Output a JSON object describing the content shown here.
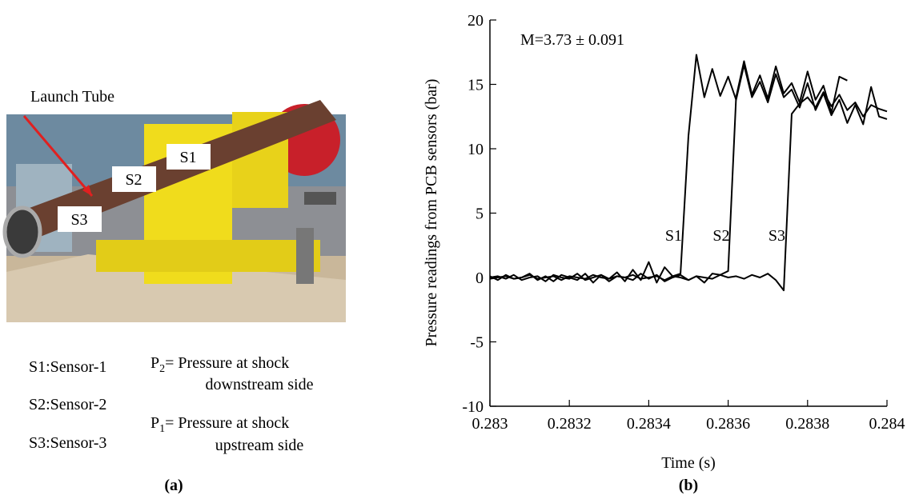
{
  "panel_a": {
    "photo_label": "Launch Tube",
    "sensor_tags": [
      "S1",
      "S2",
      "S3"
    ],
    "sensor_key": [
      "S1:Sensor-1",
      "S2:Sensor-2",
      "S3:Sensor-3"
    ],
    "pressure_key": [
      {
        "symbol": "P",
        "subscript": "2",
        "text": "= Pressure at shock",
        "line2": "downstream side"
      },
      {
        "symbol": "P",
        "subscript": "1",
        "text": "= Pressure at shock",
        "line2": "upstream side"
      }
    ],
    "caption": "(a)"
  },
  "chart_data": {
    "type": "line",
    "caption": "(b)",
    "annotation": "M=3.73 ± 0.091",
    "xlabel": "Time (s)",
    "ylabel": "Pressure readings from PCB sensors (bar)",
    "xlim": [
      0.283,
      0.284
    ],
    "xticks": [
      0.283,
      0.2832,
      0.2834,
      0.2836,
      0.2838,
      0.284
    ],
    "ylim": [
      -10,
      20
    ],
    "yticks": [
      -10,
      -5,
      0,
      5,
      10,
      15,
      20
    ],
    "x": [
      0.283,
      0.28302,
      0.28304,
      0.28306,
      0.28308,
      0.2831,
      0.28312,
      0.28314,
      0.28316,
      0.28318,
      0.2832,
      0.28322,
      0.28324,
      0.28326,
      0.28328,
      0.2833,
      0.28332,
      0.28334,
      0.28336,
      0.28338,
      0.2834,
      0.28342,
      0.28344,
      0.28346,
      0.28348,
      0.2835,
      0.28352,
      0.28354,
      0.28356,
      0.28358,
      0.2836,
      0.28362,
      0.28364,
      0.28366,
      0.28368,
      0.2837,
      0.28372,
      0.28374,
      0.28376,
      0.28378,
      0.2838,
      0.28382,
      0.28384,
      0.28386,
      0.28388,
      0.2839,
      0.28392,
      0.28394,
      0.28396,
      0.28398,
      0.284
    ],
    "series": [
      {
        "name": "S1",
        "color": "#000000",
        "values": [
          0.1,
          -0.2,
          0.2,
          -0.1,
          0,
          0.3,
          -0.2,
          0.1,
          -0.3,
          0.2,
          0,
          -0.2,
          0.3,
          -0.4,
          0.2,
          -0.1,
          0.4,
          -0.3,
          0.6,
          -0.2,
          1.2,
          -0.4,
          0.8,
          0.1,
          0.3,
          11,
          17.3,
          14,
          16.2,
          14.1,
          15.6,
          13.8,
          16.5,
          14,
          15.2,
          13.6,
          15.8,
          14,
          14.6,
          13.2,
          15.1,
          13,
          14.3,
          12.6,
          13.8,
          12,
          13.4,
          11.9,
          14.8,
          12.5,
          12.3
        ]
      },
      {
        "name": "S2",
        "color": "#000000",
        "values": [
          0,
          0.1,
          -0.1,
          0.2,
          -0.2,
          0,
          0.1,
          -0.3,
          0.2,
          0,
          -0.1,
          0.3,
          -0.2,
          0,
          0.2,
          -0.3,
          0.1,
          0,
          -0.2,
          0.3,
          -0.1,
          0.2,
          -0.3,
          0,
          0.2,
          -0.2,
          0.1,
          -0.4,
          0.3,
          0.2,
          0.5,
          14,
          16.8,
          14.2,
          15.7,
          13.9,
          16.4,
          14.3,
          15.1,
          13.6,
          16,
          13.8,
          14.9,
          12.8,
          15.6,
          15.3,
          null,
          null,
          null,
          null,
          null
        ]
      },
      {
        "name": "S3",
        "color": "#000000",
        "values": [
          -0.1,
          0,
          0.1,
          -0.1,
          0,
          0.2,
          -0.1,
          0,
          0.1,
          -0.2,
          0.1,
          0,
          -0.1,
          0.2,
          0,
          -0.1,
          0.1,
          0,
          0.2,
          -0.1,
          0,
          0.1,
          -0.2,
          0.1,
          0,
          -0.2,
          0.1,
          0,
          -0.1,
          0.2,
          0,
          0.1,
          -0.1,
          0.2,
          0,
          0.3,
          -0.2,
          -1,
          12.7,
          13.5,
          14,
          13.2,
          14.4,
          13.3,
          14.2,
          13,
          13.6,
          12.5,
          13.4,
          13.1,
          12.9
        ]
      }
    ]
  }
}
